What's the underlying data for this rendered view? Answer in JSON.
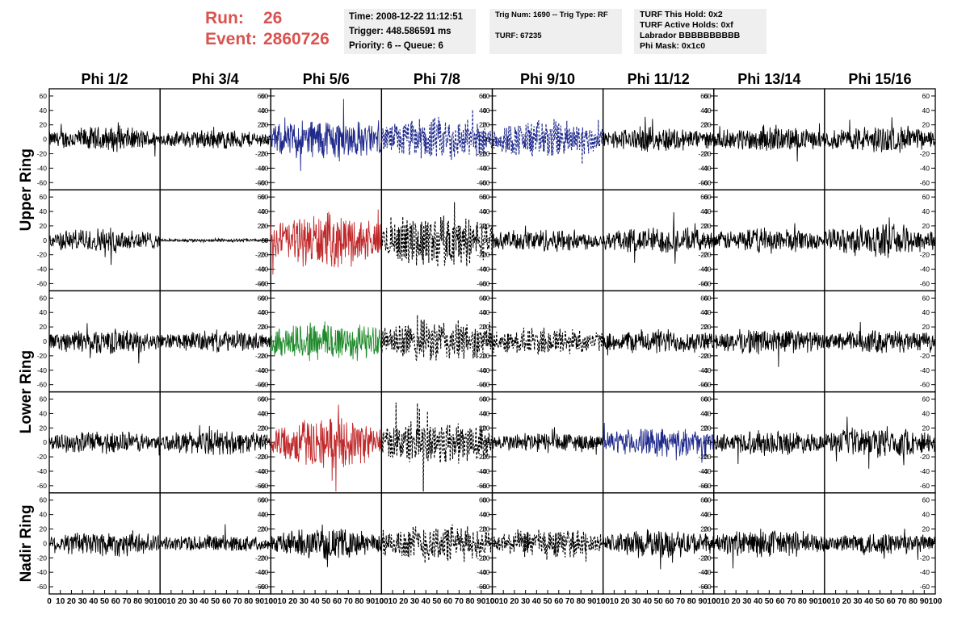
{
  "header": {
    "run_label": "Run:",
    "run_value": "26",
    "event_label": "Event:",
    "event_value": "2860726",
    "time": "Time: 2008-12-22 11:12:51",
    "trigger": "Trigger: 448.586591 ms",
    "priority": "Priority: 6 -- Queue: 6",
    "trig_num": "Trig Num: 1690 -- Trig Type: RF",
    "turf": "TURF: 67235",
    "turf_this_hold": "TURF This Hold: 0x2",
    "turf_active_holds": "TURF Active Holds: 0xf",
    "labrador": "Labrador BBBBBBBBBB",
    "phi_mask": "Phi Mask: 0x1c0"
  },
  "colors": {
    "run_text": "#d9534f",
    "info_bg": "#efefef",
    "blue": "#1f2a8c",
    "red": "#c0282a",
    "green": "#1e8a2a",
    "black": "#000000"
  },
  "chart_data": {
    "type": "line",
    "columns": [
      "Phi 1/2",
      "Phi 3/4",
      "Phi 5/6",
      "Phi 7/8",
      "Phi 9/10",
      "Phi 11/12",
      "Phi 13/14",
      "Phi 15/16"
    ],
    "rows": [
      "Upper Ring",
      "Lower Ring",
      "Nadir Ring"
    ],
    "xlim": [
      0,
      100
    ],
    "ylim": [
      -70,
      70
    ],
    "x_ticks": [
      "0",
      "10",
      "20",
      "30",
      "40",
      "50",
      "60",
      "70",
      "80",
      "90",
      "100"
    ],
    "y_ticks": [
      "60",
      "40",
      "20",
      "0",
      "-20",
      "-40",
      "-60"
    ],
    "panels": [
      {
        "style": "solid",
        "color": "#000000",
        "amp": 14,
        "dir": "left"
      },
      {
        "style": "solid",
        "color": "#000000",
        "amp": 11,
        "dir": "right"
      },
      {
        "style": "solid",
        "color": "#1f2a8c",
        "amp": 24,
        "dir": "left"
      },
      {
        "style": "dashed",
        "color": "#1f2a8c",
        "amp": 24,
        "dir": "right"
      },
      {
        "style": "dashed",
        "color": "#1f2a8c",
        "amp": 22,
        "dir": "left"
      },
      {
        "style": "solid",
        "color": "#000000",
        "amp": 14,
        "dir": "right"
      },
      {
        "style": "solid",
        "color": "#000000",
        "amp": 14,
        "dir": "left"
      },
      {
        "style": "solid",
        "color": "#000000",
        "amp": 15,
        "dir": "right"
      },
      {
        "style": "solid",
        "color": "#000000",
        "amp": 14,
        "dir": "left"
      },
      {
        "style": "solid",
        "color": "#000000",
        "amp": 2,
        "dir": "right"
      },
      {
        "style": "solid",
        "color": "#c0282a",
        "amp": 30,
        "dir": "left"
      },
      {
        "style": "dashed",
        "color": "#000000",
        "amp": 30,
        "dir": "right"
      },
      {
        "style": "solid",
        "color": "#000000",
        "amp": 13,
        "dir": "left"
      },
      {
        "style": "solid",
        "color": "#000000",
        "amp": 15,
        "dir": "right"
      },
      {
        "style": "solid",
        "color": "#000000",
        "amp": 14,
        "dir": "left"
      },
      {
        "style": "solid",
        "color": "#000000",
        "amp": 18,
        "dir": "right"
      },
      {
        "style": "solid",
        "color": "#000000",
        "amp": 14,
        "dir": "left"
      },
      {
        "style": "solid",
        "color": "#000000",
        "amp": 12,
        "dir": "right"
      },
      {
        "style": "solid",
        "color": "#1e8a2a",
        "amp": 24,
        "dir": "left"
      },
      {
        "style": "dashed",
        "color": "#000000",
        "amp": 24,
        "dir": "right"
      },
      {
        "style": "dashed",
        "color": "#000000",
        "amp": 16,
        "dir": "left"
      },
      {
        "style": "solid",
        "color": "#000000",
        "amp": 14,
        "dir": "right"
      },
      {
        "style": "solid",
        "color": "#000000",
        "amp": 15,
        "dir": "left"
      },
      {
        "style": "solid",
        "color": "#000000",
        "amp": 13,
        "dir": "right"
      },
      {
        "style": "solid",
        "color": "#000000",
        "amp": 13,
        "dir": "left"
      },
      {
        "style": "solid",
        "color": "#000000",
        "amp": 14,
        "dir": "right"
      },
      {
        "style": "solid",
        "color": "#c0282a",
        "amp": 28,
        "dir": "left"
      },
      {
        "style": "dashed",
        "color": "#000000",
        "amp": 26,
        "dir": "right"
      },
      {
        "style": "solid",
        "color": "#000000",
        "amp": 12,
        "dir": "left"
      },
      {
        "style": "solid",
        "color": "#1f2a8c",
        "amp": 16,
        "dir": "right"
      },
      {
        "style": "solid",
        "color": "#000000",
        "amp": 14,
        "dir": "left"
      },
      {
        "style": "solid",
        "color": "#000000",
        "amp": 17,
        "dir": "right"
      },
      {
        "style": "solid",
        "color": "#000000",
        "amp": 15,
        "dir": "left"
      },
      {
        "style": "solid",
        "color": "#000000",
        "amp": 10,
        "dir": "right"
      },
      {
        "style": "solid",
        "color": "#000000",
        "amp": 17,
        "dir": "left"
      },
      {
        "style": "dashed",
        "color": "#000000",
        "amp": 22,
        "dir": "right"
      },
      {
        "style": "dashed",
        "color": "#000000",
        "amp": 16,
        "dir": "left"
      },
      {
        "style": "solid",
        "color": "#000000",
        "amp": 16,
        "dir": "right"
      },
      {
        "style": "solid",
        "color": "#000000",
        "amp": 16,
        "dir": "left"
      },
      {
        "style": "solid",
        "color": "#000000",
        "amp": 13,
        "dir": "right"
      }
    ]
  }
}
